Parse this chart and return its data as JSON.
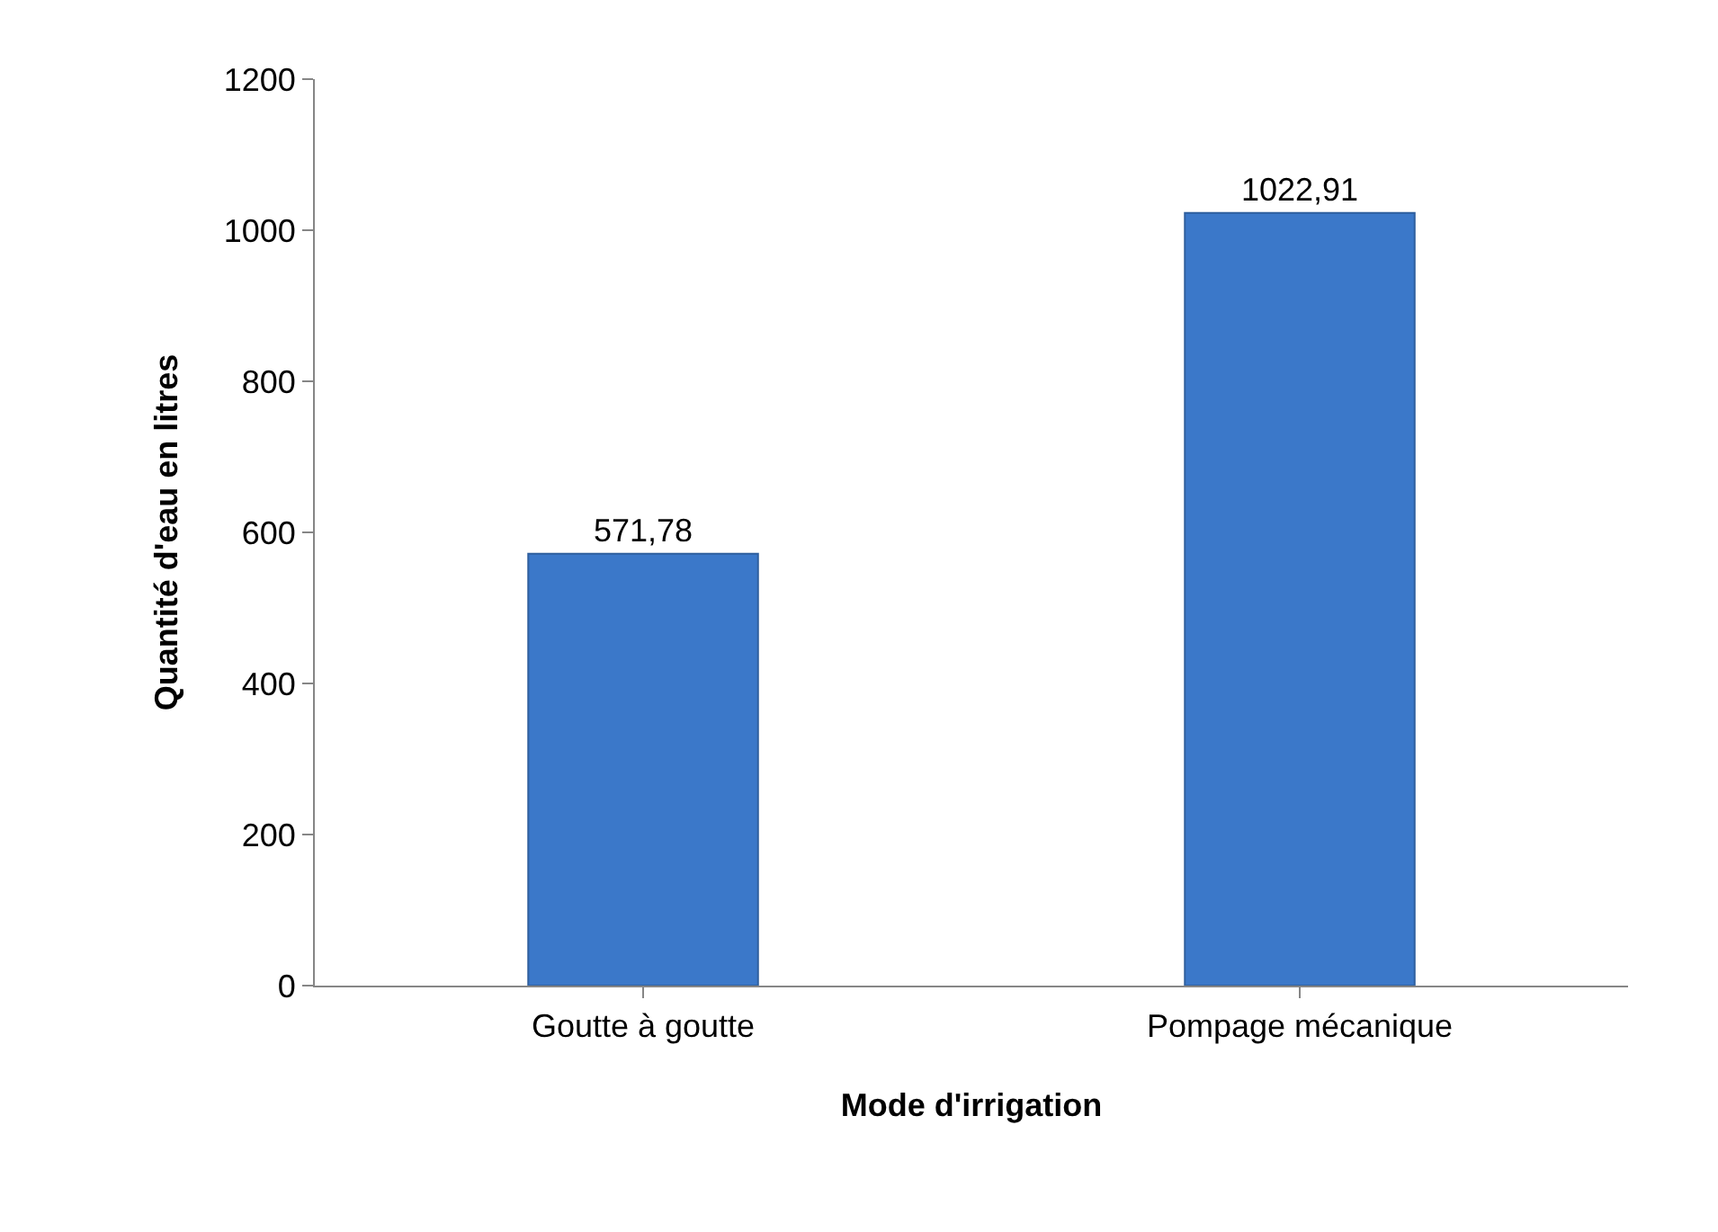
{
  "chart_data": {
    "type": "bar",
    "xlabel": "Mode d'irrigation",
    "ylabel": "Quantité d'eau en litres",
    "categories": [
      "Goutte à goutte",
      "Pompage mécanique"
    ],
    "values": [
      571.78,
      1022.91
    ],
    "value_labels": [
      "571,78",
      "1022,91"
    ],
    "color": "#3b78c9",
    "ylim": [
      0,
      1200
    ],
    "yticks": [
      0,
      200,
      400,
      600,
      800,
      1000,
      1200
    ],
    "legend": false
  }
}
